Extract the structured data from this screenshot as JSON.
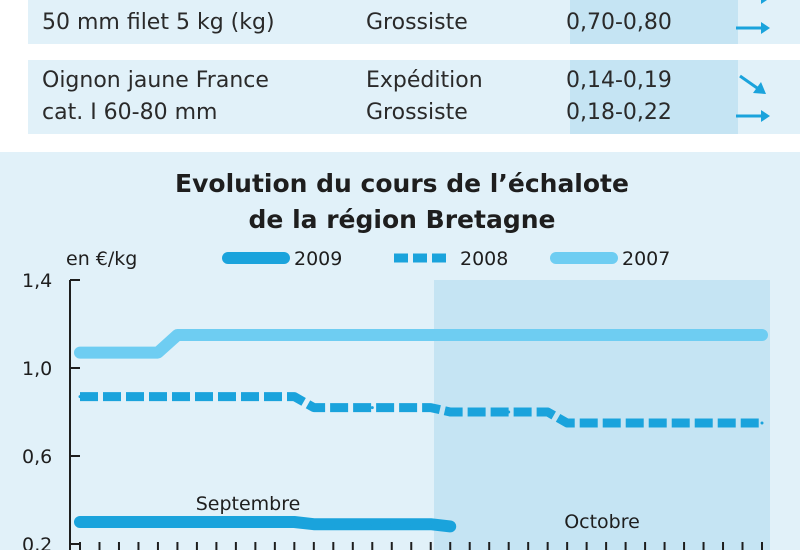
{
  "price_table": {
    "colors": {
      "row_bg": "#e1f1f9",
      "price_col_bg": "#c5e4f3",
      "arrow": "#1aa3dc"
    },
    "groups": [
      {
        "product_lines": [
          "",
          "50 mm filet 5 kg (kg)"
        ],
        "rows": [
          {
            "stage": "",
            "price": "",
            "trend": "right"
          },
          {
            "stage": "Grossiste",
            "price": "0,70-0,80",
            "trend": "right"
          }
        ]
      },
      {
        "product_lines": [
          "Oignon jaune France",
          "cat. I 60-80 mm"
        ],
        "rows": [
          {
            "stage": "Expédition",
            "price": "0,14-0,19",
            "trend": "down"
          },
          {
            "stage": "Grossiste",
            "price": "0,18-0,22",
            "trend": "right"
          }
        ]
      }
    ]
  },
  "chart_data": {
    "type": "line",
    "title": [
      "Evolution du cours de l’échalote",
      "de la région Bretagne"
    ],
    "ylabel": "en €/kg",
    "y_ticks": [
      "1,4",
      "1,0",
      "0,6",
      "0,2"
    ],
    "y_tick_values": [
      1.4,
      1.0,
      0.6,
      0.2
    ],
    "ylim": [
      0.2,
      1.4
    ],
    "x_periods": [
      "Septembre",
      "Octobre"
    ],
    "x_count": 36,
    "grid": false,
    "legend_position": "top",
    "series": [
      {
        "name": "2009",
        "style": "thick-solid",
        "color": "#1aa3dc",
        "x": [
          0,
          1,
          2,
          3,
          4,
          5,
          6,
          7,
          8,
          9,
          10,
          11,
          12,
          13,
          14,
          15,
          16,
          17,
          18,
          19
        ],
        "values": [
          0.3,
          0.3,
          0.3,
          0.3,
          0.3,
          0.3,
          0.3,
          0.3,
          0.3,
          0.3,
          0.3,
          0.3,
          0.29,
          0.29,
          0.29,
          0.29,
          0.29,
          0.29,
          0.29,
          0.28
        ]
      },
      {
        "name": "2008",
        "style": "dashed",
        "color": "#1aa3dc",
        "x": [
          0,
          5,
          10,
          11,
          12,
          15,
          18,
          19,
          22,
          24,
          25,
          30,
          35
        ],
        "values": [
          0.87,
          0.87,
          0.87,
          0.87,
          0.82,
          0.82,
          0.82,
          0.8,
          0.8,
          0.8,
          0.75,
          0.75,
          0.75
        ]
      },
      {
        "name": "2007",
        "style": "solid",
        "color": "#6ecdf2",
        "x": [
          0,
          4,
          5,
          10,
          15,
          20,
          25,
          30,
          35
        ],
        "values": [
          1.07,
          1.07,
          1.15,
          1.15,
          1.15,
          1.15,
          1.15,
          1.15,
          1.15
        ]
      }
    ]
  }
}
